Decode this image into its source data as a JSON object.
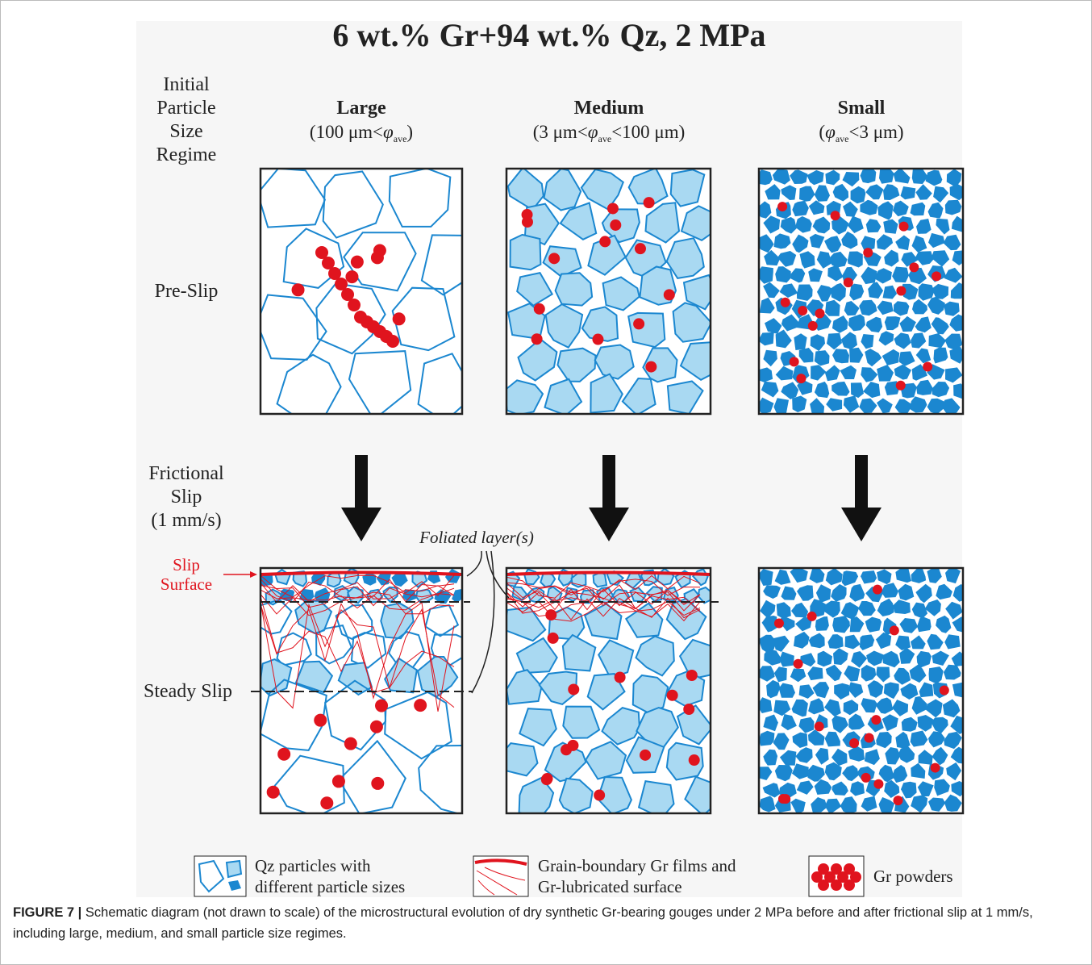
{
  "title": "6 wt.% Gr+94 wt.% Qz, 2 MPa",
  "row_labels": {
    "regime": [
      "Initial",
      "Particle",
      "Size",
      "Regime"
    ],
    "pre_slip": "Pre-Slip",
    "frictional_slip": [
      "Frictional",
      "Slip",
      "(1 mm/s)"
    ],
    "steady_slip": "Steady Slip"
  },
  "columns": [
    {
      "name": "Large",
      "range": {
        "before": "(100 μm<",
        "symbol": "φ",
        "subscript": "ave",
        "after": ")"
      }
    },
    {
      "name": "Medium",
      "range": {
        "before": "(3 μm<",
        "symbol": "φ",
        "subscript": "ave",
        "after": "<100 μm)"
      }
    },
    {
      "name": "Small",
      "range": {
        "before": "(",
        "symbol": "φ",
        "subscript": "ave",
        "after": "<3 μm)"
      }
    }
  ],
  "annotations": {
    "slip_surface": [
      "Slip",
      "Surface"
    ],
    "foliated_layers": "Foliated layer(s)"
  },
  "legend": [
    {
      "label": [
        "Qz particles with",
        "different particle sizes"
      ]
    },
    {
      "label": [
        "Grain-boundary Gr films and",
        "Gr-lubricated surface"
      ]
    },
    {
      "label": [
        "Gr powders"
      ]
    }
  ],
  "caption": {
    "label": "FIGURE 7 |",
    "text": "Schematic diagram (not drawn to scale) of the microstructural evolution of dry synthetic Gr-bearing gouges under 2 MPa before and after frictional slip at 1 mm/s, including large, medium, and small particle size regimes."
  }
}
